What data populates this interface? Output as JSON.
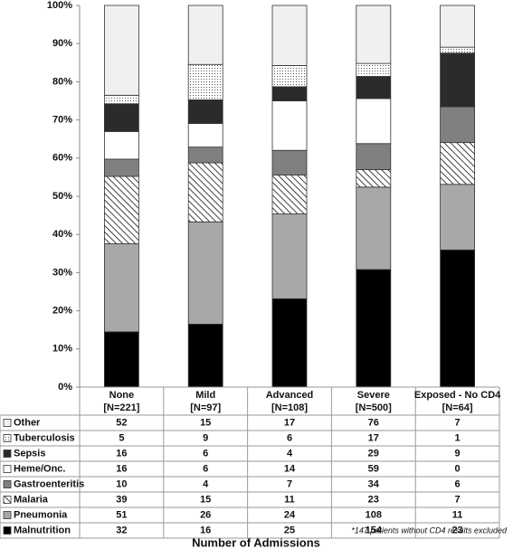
{
  "chart_data": {
    "type": "stacked_bar_100",
    "categories": [
      "None",
      "Mild",
      "Advanced",
      "Severe",
      "Exposed - No CD4"
    ],
    "category_counts": [
      "[N=221]",
      "[N=97]",
      "[N=108]",
      "[N=500]",
      "[N=64]"
    ],
    "series": [
      {
        "name": "Malnutrition",
        "color": "#000000",
        "values": [
          32,
          16,
          25,
          154,
          23
        ]
      },
      {
        "name": "Pneumonia",
        "color": "#a8a8a8",
        "values": [
          51,
          26,
          24,
          108,
          11
        ]
      },
      {
        "name": "Malaria",
        "color": "#ffffff",
        "pattern": "hatch",
        "values": [
          39,
          15,
          11,
          23,
          7
        ]
      },
      {
        "name": "Gastroenteritis",
        "color": "#808080",
        "values": [
          10,
          4,
          7,
          34,
          6
        ]
      },
      {
        "name": "Heme/Onc.",
        "color": "#ffffff",
        "values": [
          16,
          6,
          14,
          59,
          0
        ]
      },
      {
        "name": "Sepsis",
        "color": "#2b2b2b",
        "values": [
          16,
          6,
          4,
          29,
          9
        ]
      },
      {
        "name": "Tuberculosis",
        "color": "#ffffff",
        "pattern": "dots",
        "values": [
          5,
          9,
          6,
          17,
          1
        ]
      },
      {
        "name": "Other",
        "color": "#f0f0f0",
        "values": [
          52,
          15,
          17,
          76,
          7
        ]
      }
    ],
    "ylim": [
      0,
      100
    ],
    "yticks": [
      {
        "value": 0,
        "label": "0%"
      },
      {
        "value": 10,
        "label": "10%"
      },
      {
        "value": 20,
        "label": "20%"
      },
      {
        "value": 30,
        "label": "30%"
      },
      {
        "value": 40,
        "label": "40%"
      },
      {
        "value": 50,
        "label": "50%"
      },
      {
        "value": 60,
        "label": "60%"
      },
      {
        "value": 70,
        "label": "70%"
      },
      {
        "value": 80,
        "label": "80%"
      },
      {
        "value": 90,
        "label": "90%"
      },
      {
        "value": 100,
        "label": "100%"
      }
    ],
    "xlabel": "Number of Admissions",
    "footnote": "*147 patients without CD4  results excluded"
  }
}
